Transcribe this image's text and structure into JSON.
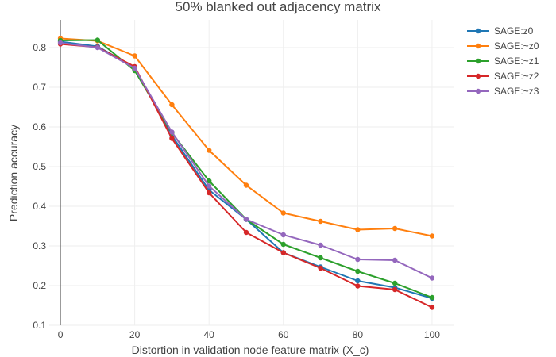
{
  "chart_data": {
    "type": "line",
    "title": "50% blanked out adjacency matrix",
    "xlabel": "Distortion in validation node feature matrix (X_c)",
    "ylabel": "Prediction accuracy",
    "xlim": [
      -3,
      106
    ],
    "ylim": [
      0.1,
      0.87
    ],
    "x_ticks": [
      0,
      20,
      40,
      60,
      80,
      100
    ],
    "y_ticks": [
      0.1,
      0.2,
      0.3,
      0.4,
      0.5,
      0.6,
      0.7,
      0.8
    ],
    "x_tick_labels": [
      "0",
      "20",
      "40",
      "60",
      "80",
      "100"
    ],
    "y_tick_labels": [
      "0.1",
      "0.2",
      "0.3",
      "0.4",
      "0.5",
      "0.6",
      "0.7",
      "0.8"
    ],
    "grid": true,
    "legend_position": "top-right",
    "x": [
      0,
      10,
      20,
      30,
      40,
      50,
      60,
      70,
      80,
      90,
      100
    ],
    "series": [
      {
        "name": "SAGE:z0",
        "color": "#1f77b4",
        "values": [
          0.815,
          0.803,
          0.75,
          0.578,
          0.441,
          0.367,
          0.283,
          0.247,
          0.212,
          0.195,
          0.168
        ]
      },
      {
        "name": "SAGE:~z0",
        "color": "#ff7f0e",
        "values": [
          0.823,
          0.817,
          0.779,
          0.656,
          0.541,
          0.453,
          0.383,
          0.362,
          0.341,
          0.344,
          0.325
        ]
      },
      {
        "name": "SAGE:~z1",
        "color": "#2ca02c",
        "values": [
          0.818,
          0.819,
          0.742,
          0.585,
          0.464,
          0.367,
          0.304,
          0.27,
          0.236,
          0.206,
          0.17
        ]
      },
      {
        "name": "SAGE:~z2",
        "color": "#d62728",
        "values": [
          0.809,
          0.801,
          0.752,
          0.571,
          0.434,
          0.334,
          0.283,
          0.244,
          0.199,
          0.19,
          0.145
        ]
      },
      {
        "name": "SAGE:~z3",
        "color": "#9467bd",
        "values": [
          0.812,
          0.8,
          0.748,
          0.587,
          0.451,
          0.367,
          0.328,
          0.302,
          0.266,
          0.264,
          0.219
        ]
      }
    ]
  }
}
